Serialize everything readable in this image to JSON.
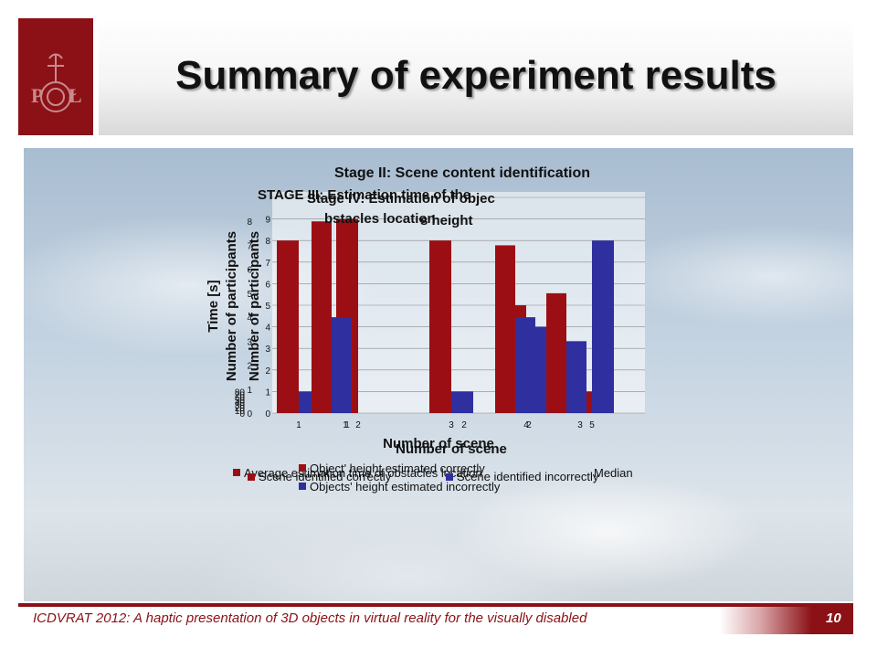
{
  "slide": {
    "title": "Summary of experiment results",
    "footer": "ICDVRAT 2012: A haptic presentation of 3D objects in virtual reality for the visually disabled",
    "page_number": "10"
  },
  "logo": {
    "letters": [
      "P",
      "Ł"
    ]
  },
  "colors": {
    "brand": "#8b1116",
    "red_series": "#9b0f14",
    "blue_series": "#2f2f9f"
  },
  "chart_data": [
    {
      "type": "bar",
      "title": "Stage II: Scene content identification",
      "xlabel": "Number of scene",
      "ylabel": "Number of participants",
      "categories": [
        "1",
        "2",
        "3",
        "4",
        "5"
      ],
      "series": [
        {
          "name": "Scene identified correctly",
          "values": [
            8,
            9,
            8,
            5,
            1
          ]
        },
        {
          "name": "Scene identified incorrectly",
          "values": [
            1,
            0,
            1,
            4,
            8
          ]
        }
      ]
    },
    {
      "type": "bar",
      "title": "Stage IV: Estimation of objects height",
      "xlabel": "Number of scene",
      "ylabel": "Number of participants",
      "ylim": [
        0,
        9
      ],
      "categories": [
        "1",
        "2",
        "3"
      ],
      "series": [
        {
          "name": "Object' height estimated correctly",
          "values": [
            8,
            7,
            5
          ]
        },
        {
          "name": "Objects' height estimated incorrectly",
          "values": [
            4,
            4,
            3
          ]
        }
      ]
    },
    {
      "type": "bar",
      "title": "STAGE III: Estimation time of the obstacles location",
      "xlabel": "Number of scene",
      "ylabel": "Time [s]",
      "ylim": [
        0,
        80
      ],
      "categories": [
        "1",
        "2"
      ],
      "series": [
        {
          "name": "Average estimation time of obstacles location",
          "values": [
            65,
            50
          ]
        },
        {
          "name": "Median",
          "values": [
            55,
            40
          ]
        }
      ]
    }
  ],
  "axis_ticks": {
    "stage_ii": [
      "0",
      "1",
      "2",
      "3",
      "4",
      "5",
      "6",
      "7",
      "8",
      "9"
    ],
    "stage_iii": [
      "0",
      "10",
      "20",
      "30",
      "40",
      "50",
      "60",
      "70",
      "80"
    ],
    "stage_iv": [
      "0",
      "1",
      "2",
      "3",
      "4",
      "5",
      "6",
      "7",
      "8"
    ]
  }
}
